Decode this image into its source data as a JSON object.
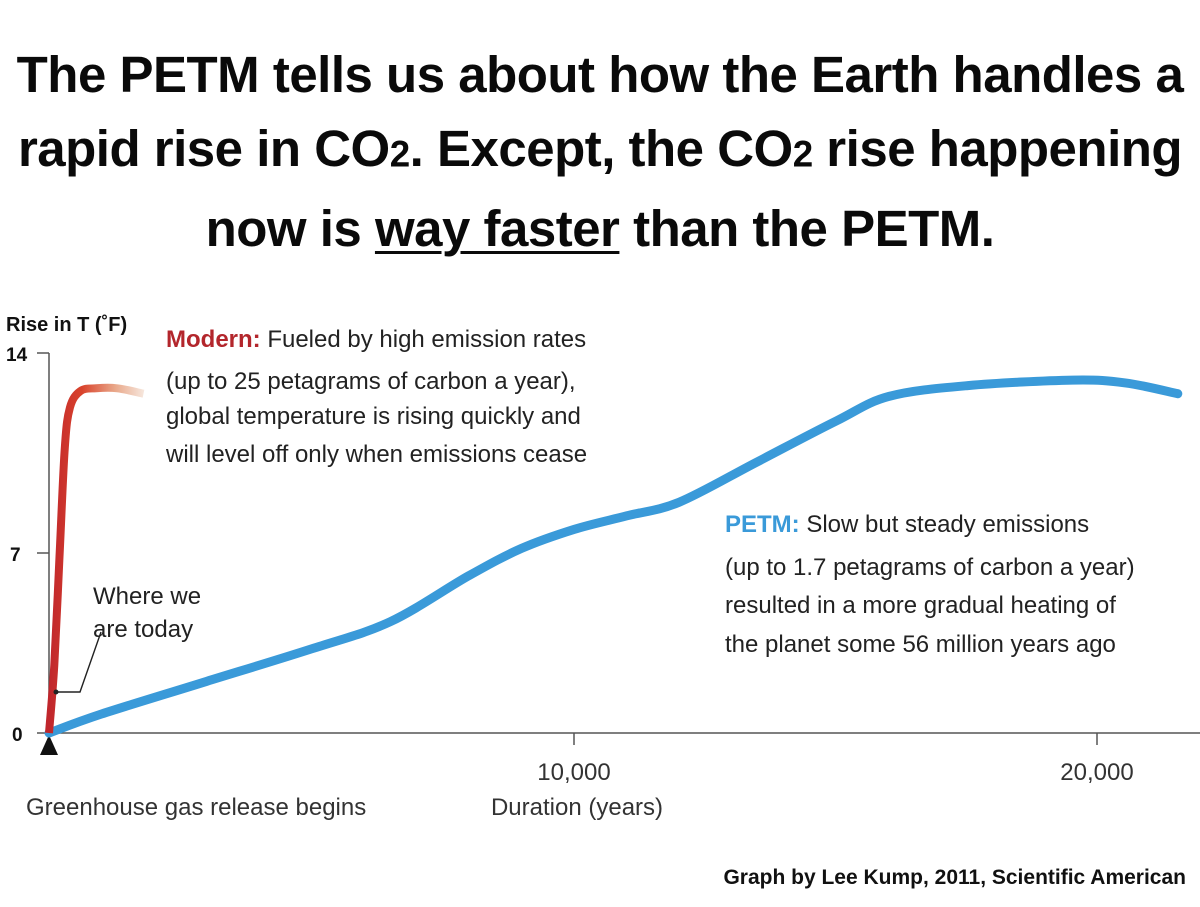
{
  "headline": {
    "line1": "The PETM tells us about how the Earth handles a",
    "line2a": "rapid rise in CO",
    "line2_sub": "2",
    "line2b": ". Except, the CO",
    "line2_sub2": "2",
    "line2c": " rise happening",
    "line3a": "now is ",
    "line3_emph": "way faster",
    "line3b": " than the PETM."
  },
  "chart_data": {
    "type": "line",
    "title": "",
    "ylabel": "Rise in T (˚F)",
    "xlabel": "Duration (years)",
    "origin_label": "Greenhouse gas release begins",
    "ylim": [
      0,
      14
    ],
    "xlim": [
      0,
      21500
    ],
    "yticks": [
      0,
      7,
      14
    ],
    "ytick_labels": [
      "0",
      "7",
      "14"
    ],
    "xticks": [
      10000,
      20000
    ],
    "xtick_labels": [
      "10,000",
      "20,000"
    ],
    "series": [
      {
        "name": "Modern",
        "color": "#c0262c",
        "x": [
          0,
          100,
          200,
          300,
          400,
          600,
          900,
          1300,
          1800
        ],
        "y": [
          0,
          2.5,
          6.5,
          10.5,
          12,
          12.6,
          12.7,
          12.7,
          12.5
        ]
      },
      {
        "name": "PETM",
        "color": "#3a9ad9",
        "x": [
          0,
          1000,
          3000,
          5000,
          6500,
          8000,
          9000,
          10000,
          11000,
          12000,
          13500,
          15000,
          16000,
          17500,
          19500,
          20500,
          21500
        ],
        "y": [
          0,
          0.7,
          1.9,
          3.1,
          4.1,
          5.8,
          6.8,
          7.5,
          8.0,
          8.5,
          10.0,
          11.5,
          12.4,
          12.8,
          13.0,
          12.9,
          12.5
        ]
      }
    ],
    "annotations": {
      "today_label_1": "Where we",
      "today_label_2": "are today",
      "modern_lead": "Modern:",
      "modern_line1": " Fueled by high emission rates",
      "modern_line2": "(up to 25 petagrams of carbon a year),",
      "modern_line3": "global temperature is rising quickly and",
      "modern_line4": "will level off only when emissions cease",
      "petm_lead": "PETM:",
      "petm_line1": " Slow but steady emissions",
      "petm_line2": "(up to 1.7 petagrams of carbon a year)",
      "petm_line3": "resulted in a more gradual heating of",
      "petm_line4": "the planet some 56 million years ago"
    }
  },
  "credit": "Graph by Lee Kump, 2011, Scientific American"
}
